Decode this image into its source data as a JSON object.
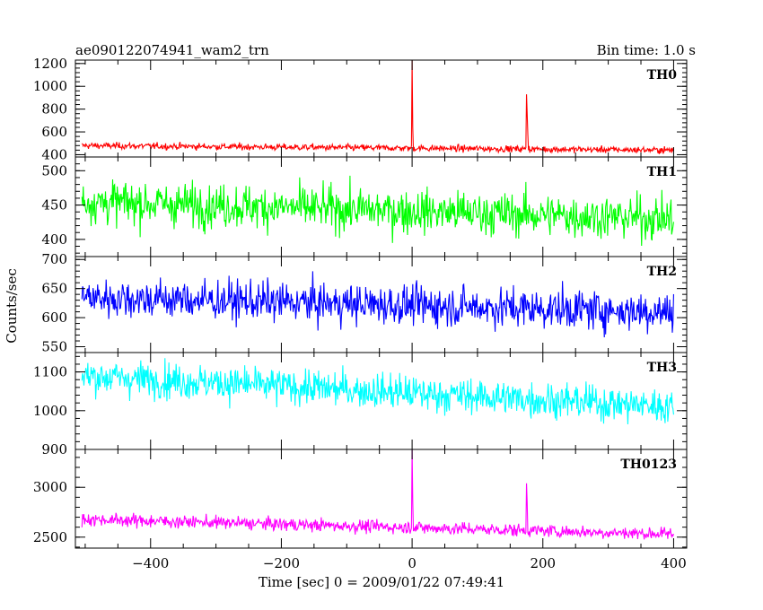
{
  "chart_data": {
    "type": "line",
    "title_left": "ae090122074941_wam2_trn",
    "title_right": "Bin time: 1.0 s",
    "xlabel": "Time [sec] 0 = 2009/01/22 07:49:41",
    "ylabel": "Counts/sec",
    "xlim": [
      -515,
      420
    ],
    "x_ticks": [
      -400,
      -200,
      0,
      200,
      400
    ],
    "x_ticklabels": [
      "−400",
      "−200",
      "0",
      "200",
      "400"
    ],
    "series_x_range": [
      -505,
      400
    ],
    "panels": [
      {
        "label": "TH0",
        "color": "#ff0000",
        "ylim": [
          380,
          1230
        ],
        "y_ticks": [
          400,
          600,
          800,
          1000,
          1200
        ],
        "baseline_start": 480,
        "baseline_end": 440,
        "noise": 20,
        "spikes": [
          {
            "x": 0,
            "peak": 1230
          },
          {
            "x": 1,
            "peak": 640
          },
          {
            "x": 175,
            "peak": 930
          },
          {
            "x": 176,
            "peak": 760
          },
          {
            "x": 177,
            "peak": 580
          }
        ]
      },
      {
        "label": "TH1",
        "color": "#00ff00",
        "ylim": [
          375,
          520
        ],
        "y_ticks": [
          400,
          450,
          500
        ],
        "baseline_start": 455,
        "baseline_end": 430,
        "noise": 22,
        "spikes": []
      },
      {
        "label": "TH2",
        "color": "#0000ff",
        "ylim": [
          540,
          705
        ],
        "y_ticks": [
          550,
          600,
          650,
          700
        ],
        "baseline_start": 635,
        "baseline_end": 610,
        "noise": 24,
        "spikes": []
      },
      {
        "label": "TH3",
        "color": "#00ffff",
        "ylim": [
          900,
          1150
        ],
        "y_ticks": [
          900,
          1000,
          1100
        ],
        "baseline_start": 1090,
        "baseline_end": 1010,
        "noise": 32,
        "spikes": []
      },
      {
        "label": "TH0123",
        "color": "#ff00ff",
        "ylim": [
          2390,
          3380
        ],
        "y_ticks": [
          2500,
          3000
        ],
        "baseline_start": 2680,
        "baseline_end": 2530,
        "noise": 45,
        "spikes": [
          {
            "x": 0,
            "peak": 3380
          },
          {
            "x": 1,
            "peak": 2860
          },
          {
            "x": 175,
            "peak": 3040
          },
          {
            "x": 176,
            "peak": 2850
          }
        ]
      }
    ]
  }
}
